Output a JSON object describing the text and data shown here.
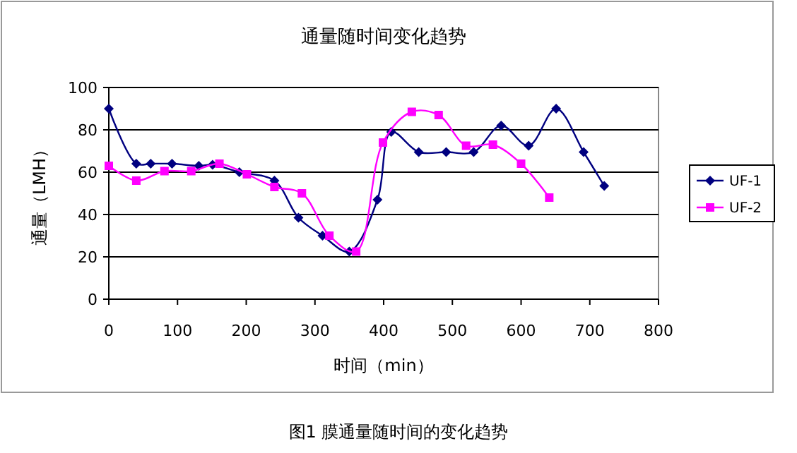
{
  "chart_data": {
    "type": "line",
    "title": "通量随时间变化趋势",
    "xlabel": "时间（min）",
    "ylabel": "通量（LMH）",
    "annotations": [
      "图1 膜通量随时间的变化趋势"
    ],
    "xlim": [
      0,
      800
    ],
    "xticks": [
      0,
      100,
      200,
      300,
      400,
      500,
      600,
      700,
      800
    ],
    "ylim": [
      0,
      100
    ],
    "yticks": [
      0,
      20,
      40,
      60,
      80,
      100
    ],
    "grid": "y",
    "legend": "right",
    "line_style": "solid",
    "series": [
      {
        "name": "UF-1",
        "color": "#000080",
        "marker": "diamond",
        "x": [
          0,
          40,
          61,
          92,
          131,
          151,
          190,
          241,
          276,
          311,
          350,
          391,
          411,
          451,
          491,
          531,
          571,
          611,
          651,
          691,
          721
        ],
        "values": [
          90,
          64,
          64,
          64,
          63,
          63.5,
          60,
          56,
          38.5,
          30,
          22.5,
          47,
          79,
          69.5,
          69.5,
          69.5,
          82,
          72.5,
          90,
          69.5,
          53.5
        ]
      },
      {
        "name": "UF-2",
        "color": "#ff00ff",
        "marker": "square",
        "x": [
          0,
          40,
          81,
          120,
          161,
          201,
          241,
          281,
          321,
          360,
          399,
          441,
          480,
          520,
          559,
          600,
          641
        ],
        "values": [
          63,
          56,
          60.5,
          60.5,
          64,
          59,
          53,
          50,
          30,
          22.5,
          74,
          88.5,
          87,
          72.5,
          73,
          64,
          48
        ]
      }
    ]
  }
}
